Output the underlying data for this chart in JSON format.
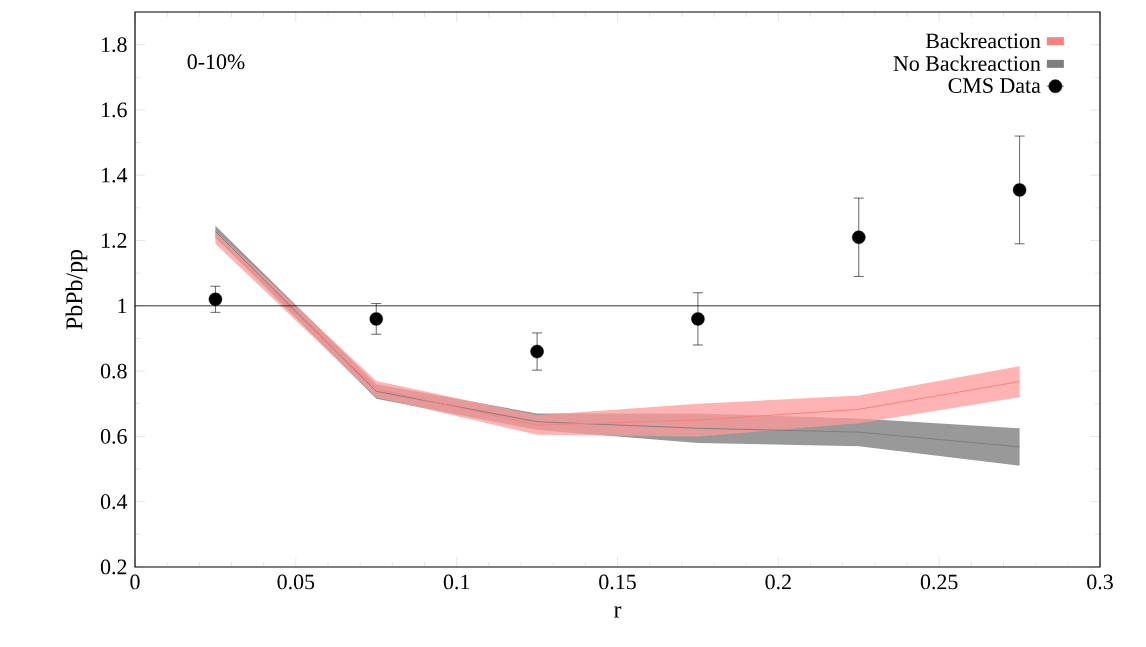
{
  "chart_data": {
    "type": "scatter",
    "xlabel": "r",
    "ylabel": "PbPb/pp",
    "annotations": [
      "0-10%"
    ],
    "x": [
      0.025,
      0.075,
      0.125,
      0.175,
      0.225,
      0.275
    ],
    "xlim": [
      0,
      0.3
    ],
    "ylim": [
      0.2,
      1.9
    ],
    "xticks": [
      0,
      0.05,
      0.1,
      0.15,
      0.2,
      0.25,
      0.3
    ],
    "yticks": [
      0.2,
      0.4,
      0.6,
      0.8,
      1,
      1.2,
      1.4,
      1.6,
      1.8
    ],
    "legend": "top right",
    "grid": false,
    "ref_lines": [
      {
        "axis": "y",
        "value": 1,
        "color": "#000000"
      }
    ],
    "series": [
      {
        "name": "Backreaction",
        "type": "line",
        "color": "#ff7f7f",
        "values": [
          1.21,
          0.745,
          0.635,
          0.65,
          0.683,
          0.768
        ],
        "lower": [
          1.19,
          0.72,
          0.605,
          0.6,
          0.64,
          0.72
        ],
        "upper": [
          1.23,
          0.77,
          0.665,
          0.7,
          0.725,
          0.815
        ]
      },
      {
        "name": "No Backreaction",
        "type": "line",
        "color": "#7f7f7f",
        "values": [
          1.228,
          0.738,
          0.645,
          0.625,
          0.613,
          0.568
        ],
        "lower": [
          1.21,
          0.715,
          0.62,
          0.58,
          0.57,
          0.51
        ],
        "upper": [
          1.245,
          0.76,
          0.67,
          0.67,
          0.655,
          0.625
        ]
      },
      {
        "name": "CMS Data",
        "color": "#000000",
        "marker": "circle",
        "values": [
          1.02,
          0.96,
          0.86,
          0.96,
          1.21,
          1.355
        ],
        "errors": [
          0.04,
          0.047,
          0.057,
          0.08,
          0.12,
          0.165
        ]
      }
    ]
  }
}
